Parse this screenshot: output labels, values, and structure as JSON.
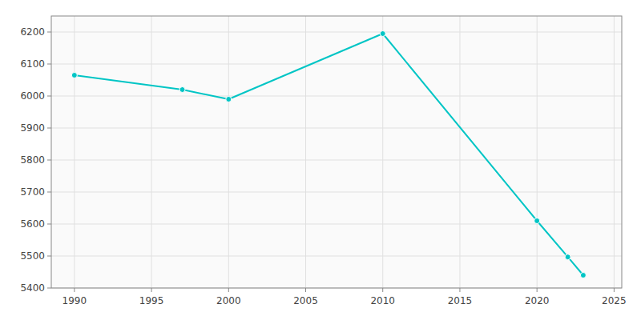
{
  "chart_data": {
    "type": "line",
    "x": [
      1990,
      1997,
      2000,
      2010,
      2020,
      2022,
      2023
    ],
    "values": [
      6065,
      6020,
      5990,
      6195,
      5610,
      5497,
      5440
    ],
    "color": "#00C5C5",
    "marker": "circle",
    "xlim": [
      1988.5,
      2025.5
    ],
    "ylim": [
      5400,
      6250
    ],
    "xticks": [
      1990,
      1995,
      2000,
      2005,
      2010,
      2015,
      2020,
      2025
    ],
    "yticks": [
      5400,
      5500,
      5600,
      5700,
      5800,
      5900,
      6000,
      6100,
      6200
    ],
    "grid": true
  }
}
